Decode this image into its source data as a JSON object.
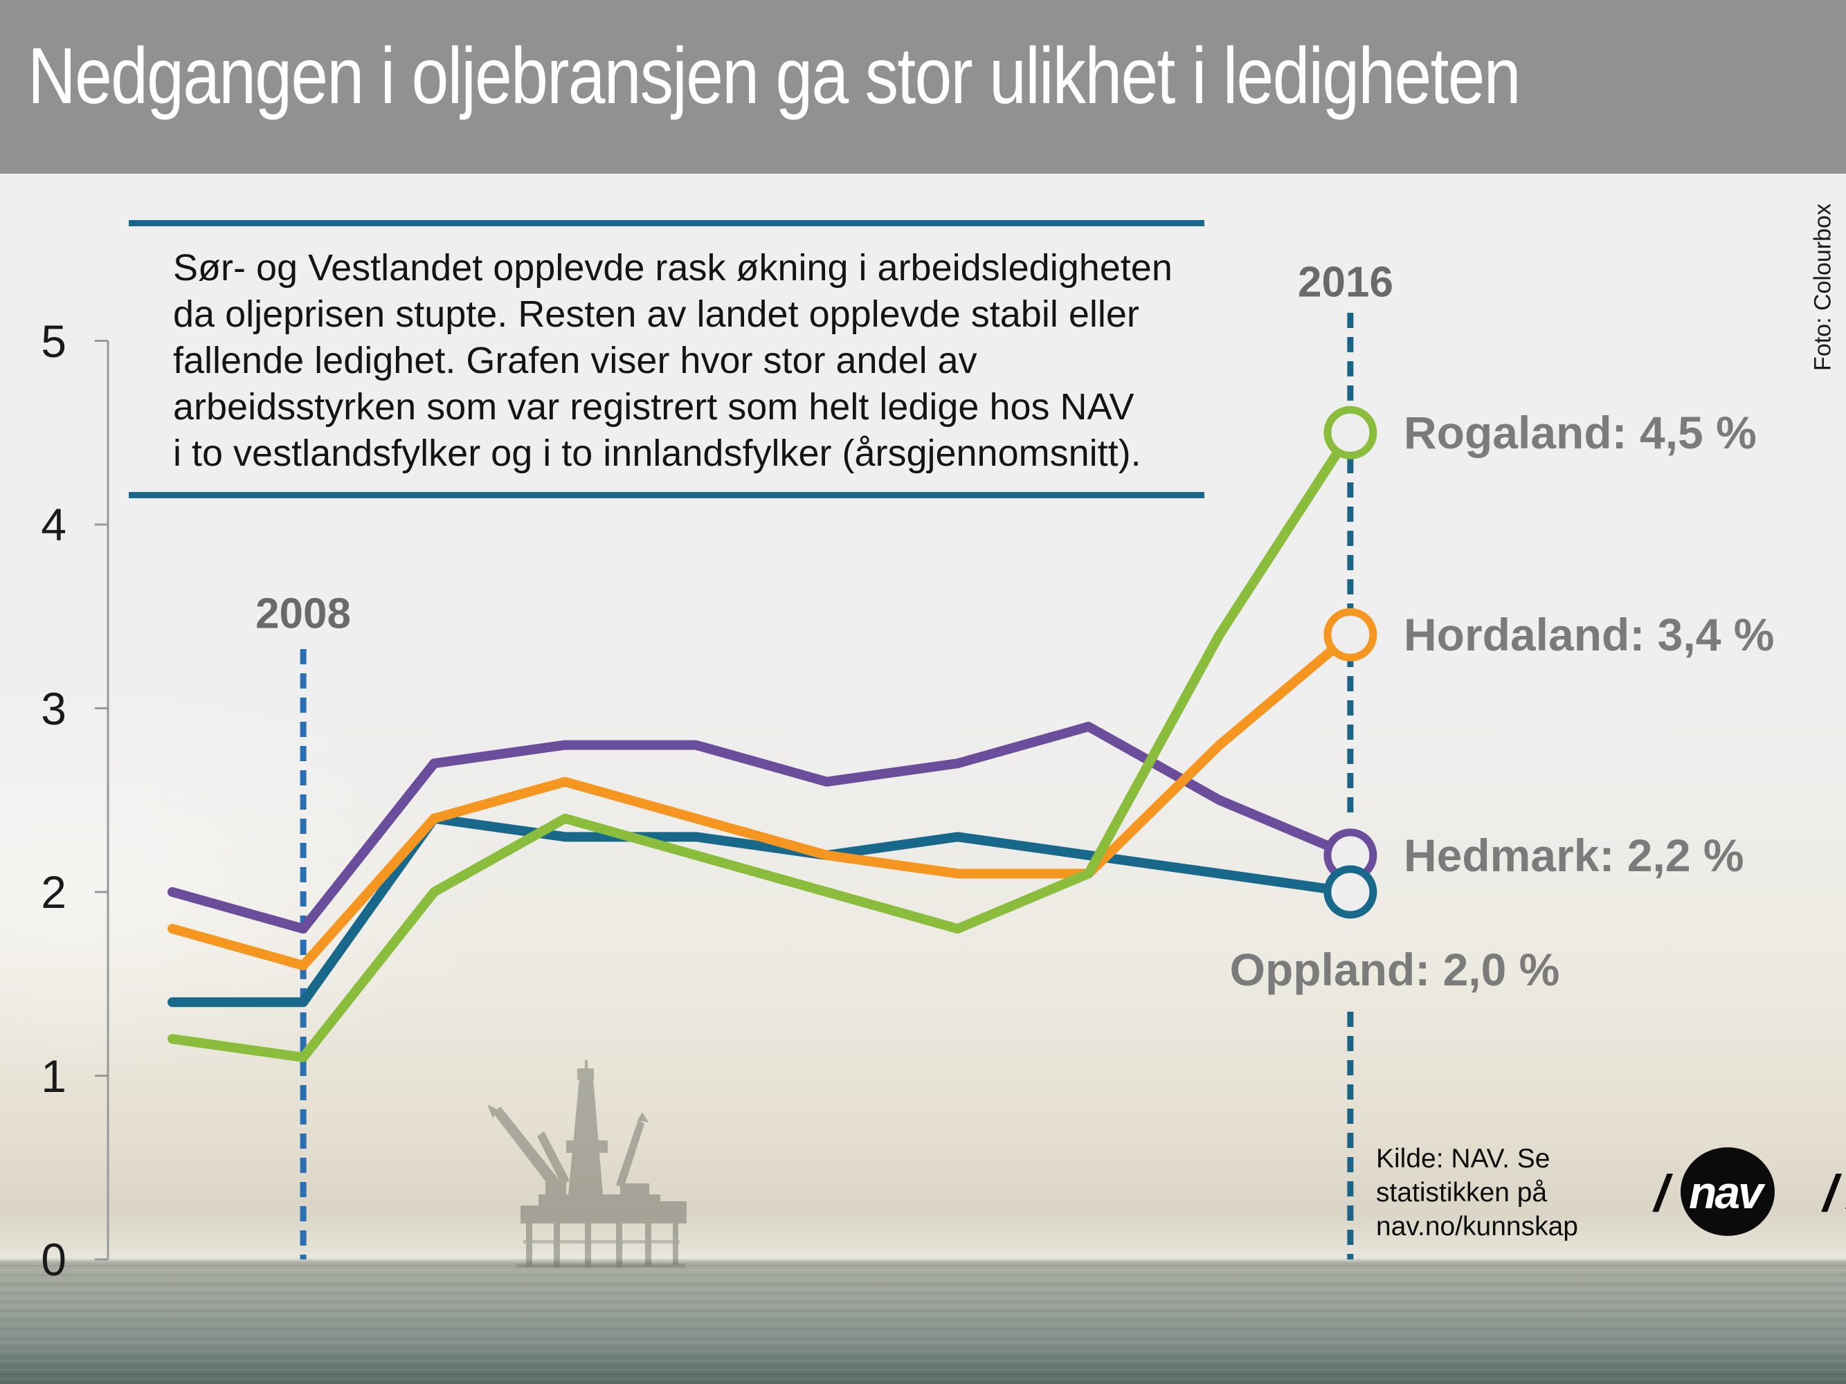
{
  "title": "Nedgangen i oljebransjen ga stor ulikhet i ledigheten",
  "photo_credit": "Foto: Colourbox",
  "description": "Sør- og Vestlandet opplevde rask økning i arbeidsledigheten\nda oljeprisen stupte. Resten av landet opplevde stabil eller\nfallende ledighet. Grafen viser hvor stor andel av\narbeidsstyrken som var registrert som helt ledige hos NAV\ni to vestlandsfylker og i to innlandsfylker (årsgjennomsnitt).",
  "source_note": "Kilde: NAV. Se\nstatistikken på\nnav.no/kunnskap",
  "logo": {
    "text": "nav",
    "slash_left": "/",
    "slash_right_1": "/",
    "slash_right_2": "/"
  },
  "chart_data": {
    "type": "line",
    "x": [
      2007,
      2008,
      2009,
      2010,
      2011,
      2012,
      2013,
      2014,
      2015,
      2016
    ],
    "xlabel": "",
    "ylabel": "",
    "ylim": [
      0,
      5
    ],
    "yticks": [
      0,
      1,
      2,
      3,
      4,
      5
    ],
    "grid": false,
    "legend_position": "end-of-line labels",
    "x_markers": [
      {
        "label": "2008",
        "year": 2008,
        "color": "#2b6fb3"
      },
      {
        "label": "2016",
        "year": 2016,
        "color": "#1b6486"
      }
    ],
    "series": [
      {
        "name": "Hedmark",
        "label": "Hedmark: 2,2 %",
        "color": "#6a4d9b",
        "label_placement": "right",
        "values": [
          2.0,
          1.8,
          2.7,
          2.8,
          2.8,
          2.6,
          2.7,
          2.9,
          2.5,
          2.2
        ]
      },
      {
        "name": "Oppland",
        "label": "Oppland: 2,0 %",
        "color": "#18688c",
        "label_placement": "below",
        "values": [
          1.4,
          1.4,
          2.4,
          2.3,
          2.3,
          2.2,
          2.3,
          2.2,
          2.1,
          2.0
        ]
      },
      {
        "name": "Hordaland",
        "label": "Hordaland: 3,4 %",
        "color": "#f59620",
        "label_placement": "right",
        "values": [
          1.8,
          1.6,
          2.4,
          2.6,
          2.4,
          2.2,
          2.1,
          2.1,
          2.8,
          3.4
        ]
      },
      {
        "name": "Rogaland",
        "label": "Rogaland: 4,5 %",
        "color": "#8abd3c",
        "label_placement": "right",
        "values": [
          1.2,
          1.1,
          2.0,
          2.4,
          2.2,
          2.0,
          1.8,
          2.1,
          3.4,
          4.5
        ]
      }
    ]
  }
}
